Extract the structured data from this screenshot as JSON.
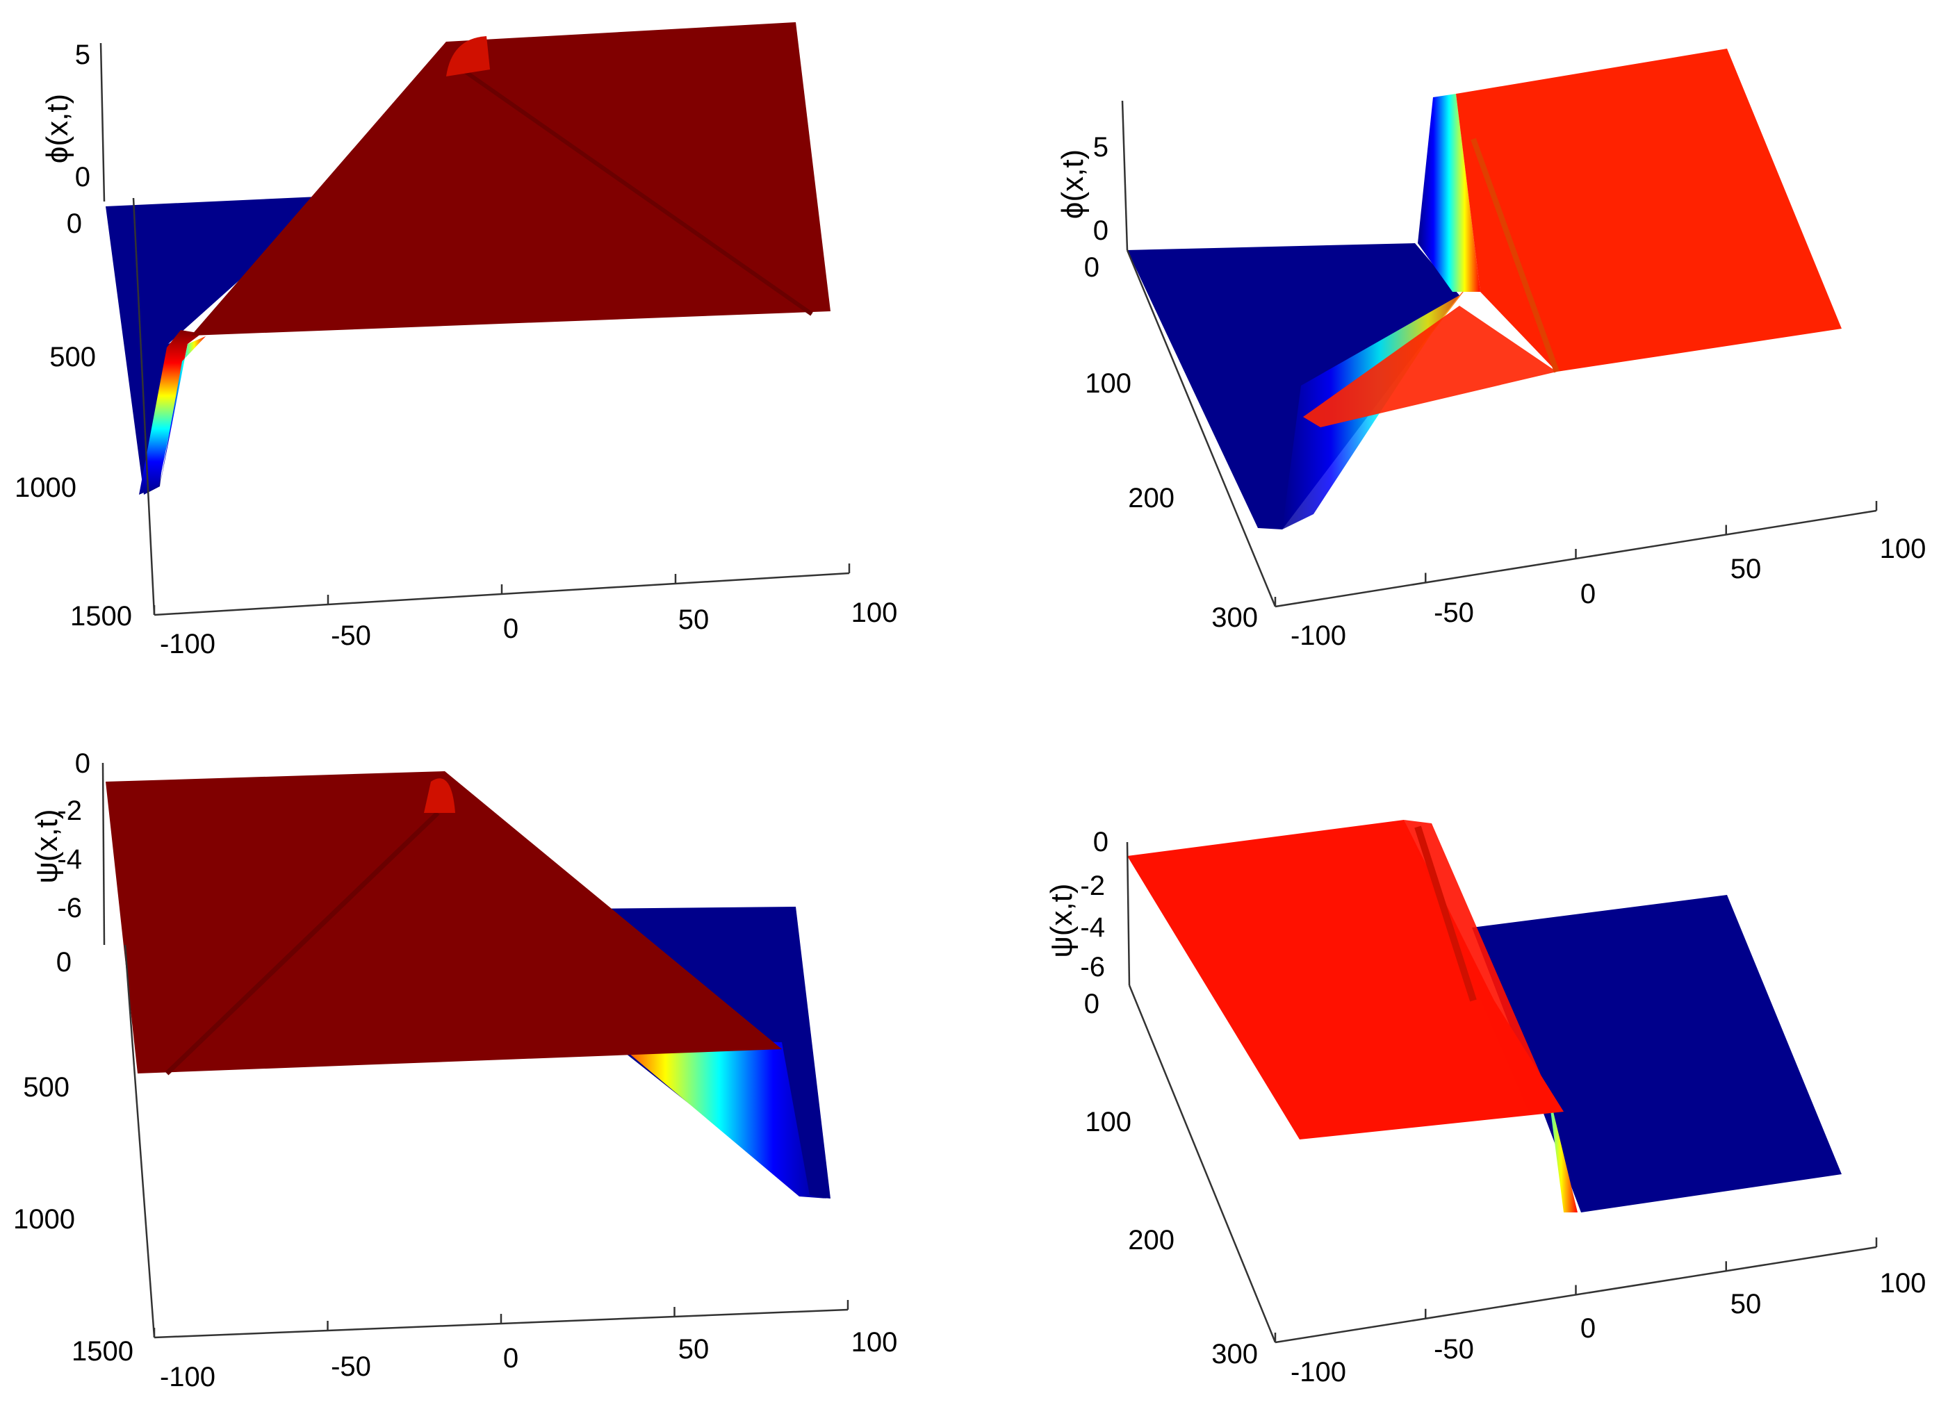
{
  "figure": {
    "colormap": [
      "#00008b",
      "#0000ff",
      "#00ffff",
      "#ffff00",
      "#ff0000",
      "#800000"
    ],
    "panels": [
      {
        "id": "phi-long",
        "chart_data": {
          "type": "surface",
          "zlabel": "ϕ(x,t)",
          "x_ticks": [
            "-100",
            "-50",
            "0",
            "50",
            "100"
          ],
          "t_ticks": [
            "0",
            "500",
            "1000",
            "1500"
          ],
          "z_ticks": [
            "5",
            "0"
          ],
          "xlim": [
            -100,
            100
          ],
          "tlim": [
            0,
            1500
          ],
          "zlim": [
            0,
            6.28
          ],
          "low_color": "#00008b",
          "high_color": "#800000"
        }
      },
      {
        "id": "phi-short",
        "chart_data": {
          "type": "surface",
          "zlabel": "ϕ(x,t)",
          "x_ticks": [
            "-100",
            "-50",
            "0",
            "50",
            "100"
          ],
          "t_ticks": [
            "0",
            "100",
            "200",
            "300"
          ],
          "z_ticks": [
            "5",
            "0"
          ],
          "xlim": [
            -100,
            100
          ],
          "tlim": [
            0,
            300
          ],
          "zlim": [
            0,
            6.28
          ],
          "low_color": "#00008b",
          "high_color": "#ff2200"
        }
      },
      {
        "id": "psi-long",
        "chart_data": {
          "type": "surface",
          "zlabel": "ψ(x,t)",
          "x_ticks": [
            "-100",
            "-50",
            "0",
            "50",
            "100"
          ],
          "t_ticks": [
            "0",
            "500",
            "1000",
            "1500"
          ],
          "z_ticks": [
            "0",
            "-2",
            "-4",
            "-6"
          ],
          "xlim": [
            -100,
            100
          ],
          "tlim": [
            0,
            1500
          ],
          "zlim": [
            -6.28,
            0
          ],
          "low_color": "#00008b",
          "high_color": "#800000"
        }
      },
      {
        "id": "psi-short",
        "chart_data": {
          "type": "surface",
          "zlabel": "ψ(x,t)",
          "x_ticks": [
            "-100",
            "-50",
            "0",
            "50",
            "100"
          ],
          "t_ticks": [
            "0",
            "100",
            "200",
            "300"
          ],
          "z_ticks": [
            "0",
            "-2",
            "-4",
            "-6"
          ],
          "xlim": [
            -100,
            100
          ],
          "tlim": [
            0,
            300
          ],
          "zlim": [
            -6.28,
            0
          ],
          "low_color": "#00008b",
          "high_color": "#ff1100"
        }
      }
    ]
  }
}
